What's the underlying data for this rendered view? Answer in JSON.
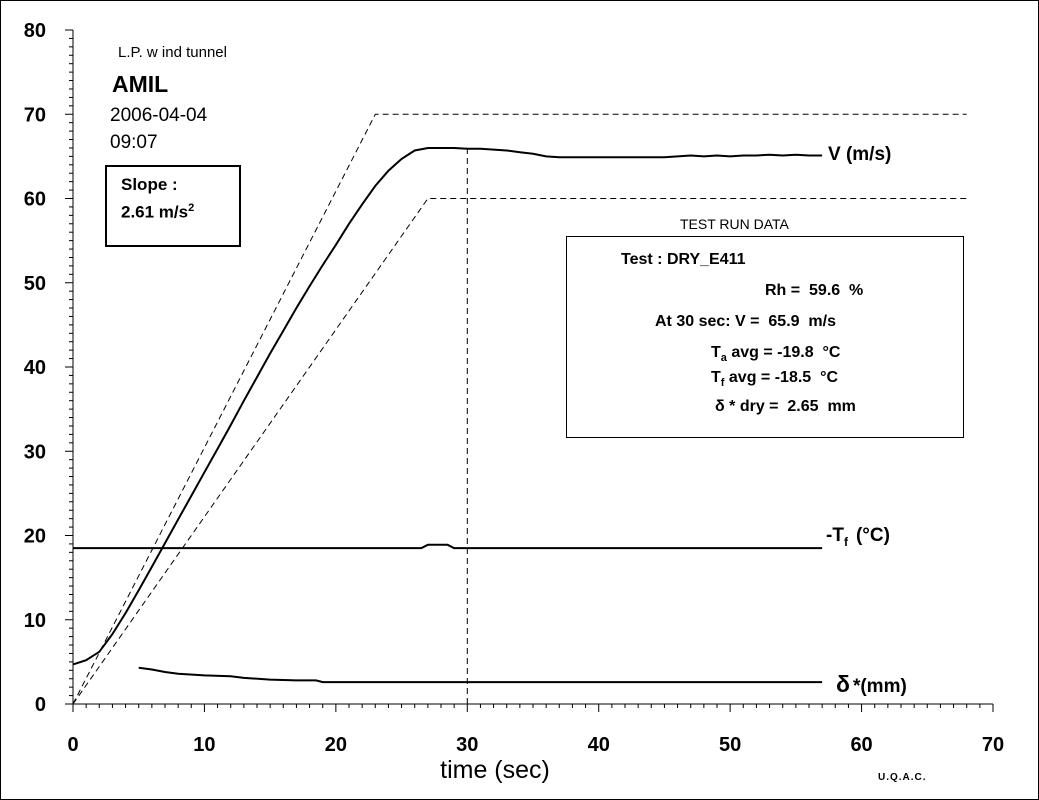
{
  "annotations": {
    "site": "L.P. w ind tunnel",
    "title": "AMIL",
    "date": "2006-04-04",
    "time": "09:07",
    "slope_label": "Slope :",
    "slope_value": "2.61  m/s",
    "slope_unit_exp": "2"
  },
  "test_run": {
    "heading": "TEST RUN DATA",
    "test_label": "Test :",
    "test_value": "DRY_E411",
    "rh_label": "Rh =",
    "rh_value": "59.6",
    "rh_unit": "%",
    "v30_label": "At 30 sec: V =",
    "v30_value": "65.9",
    "v30_unit": "m/s",
    "ta_symbol": "T",
    "ta_sub": "a",
    "ta_label": "avg =",
    "ta_value": "-19.8",
    "ta_unit": "°C",
    "tf_symbol": "T",
    "tf_sub": "f",
    "tf_label": "avg =",
    "tf_value": "-18.5",
    "tf_unit": "°C",
    "delta_label": "δ * dry =",
    "delta_value": "2.65",
    "delta_unit": "mm"
  },
  "footer": "U.Q.A.C.",
  "chart_data": {
    "type": "line",
    "xlabel": "time (sec)",
    "ylabel": "",
    "xlim": [
      0,
      70
    ],
    "ylim": [
      0,
      80
    ],
    "x_ticks": [
      0,
      10,
      20,
      30,
      40,
      50,
      60,
      70
    ],
    "y_ticks": [
      0,
      10,
      20,
      30,
      40,
      50,
      60,
      70,
      80
    ],
    "grid": false,
    "series": [
      {
        "name": "V (m/s)",
        "style": "solid",
        "x": [
          0,
          1,
          2,
          3,
          4,
          5,
          6,
          7,
          8,
          9,
          10,
          11,
          12,
          13,
          14,
          15,
          16,
          17,
          18,
          19,
          20,
          21,
          22,
          23,
          24,
          25,
          26,
          27,
          28,
          29,
          30,
          31,
          32,
          33,
          34,
          35,
          36,
          37,
          38,
          39,
          40,
          41,
          42,
          43,
          44,
          45,
          46,
          47,
          48,
          49,
          50,
          51,
          52,
          53,
          54,
          55,
          56,
          57
        ],
        "values": [
          4.7,
          5.2,
          6.2,
          8.3,
          10.8,
          13.5,
          16.3,
          19.1,
          21.9,
          24.7,
          27.5,
          30.3,
          33.1,
          36.0,
          38.8,
          41.6,
          44.3,
          47.0,
          49.6,
          52.1,
          54.5,
          57.0,
          59.3,
          61.5,
          63.3,
          64.7,
          65.7,
          66.0,
          66.0,
          66.0,
          65.9,
          65.9,
          65.8,
          65.7,
          65.5,
          65.3,
          65.0,
          64.9,
          64.9,
          64.9,
          64.9,
          64.9,
          64.9,
          64.9,
          64.9,
          64.9,
          65.0,
          65.1,
          65.0,
          65.1,
          65.0,
          65.1,
          65.1,
          65.2,
          65.1,
          65.2,
          65.1,
          65.1
        ]
      },
      {
        "name": "-Tf (°C)",
        "style": "solid",
        "x": [
          0,
          26.5,
          27,
          28.5,
          29,
          57
        ],
        "values": [
          18.5,
          18.5,
          18.9,
          18.9,
          18.5,
          18.5
        ]
      },
      {
        "name": "δ*(mm)",
        "style": "solid",
        "x": [
          5,
          6,
          7,
          8,
          10,
          12,
          13,
          15,
          17,
          18.5,
          19,
          57
        ],
        "values": [
          4.3,
          4.1,
          3.8,
          3.6,
          3.4,
          3.3,
          3.1,
          2.9,
          2.8,
          2.8,
          2.6,
          2.6
        ]
      },
      {
        "name": "ramp_upper",
        "style": "dashed",
        "x": [
          0,
          23,
          68
        ],
        "values": [
          0,
          70,
          70
        ]
      },
      {
        "name": "ramp_lower",
        "style": "dashed",
        "x": [
          0,
          27,
          68
        ],
        "values": [
          0,
          60,
          60
        ]
      },
      {
        "name": "t30_marker",
        "style": "dashed",
        "x": [
          30,
          30
        ],
        "values": [
          66,
          0
        ]
      }
    ],
    "series_labels": {
      "velocity": "V (m/s)",
      "temp_prefix": "-T",
      "temp_sub": "f",
      "temp_unit": "(°C)",
      "thickness_symbol": "δ",
      "thickness_rest": "*(mm)"
    }
  }
}
